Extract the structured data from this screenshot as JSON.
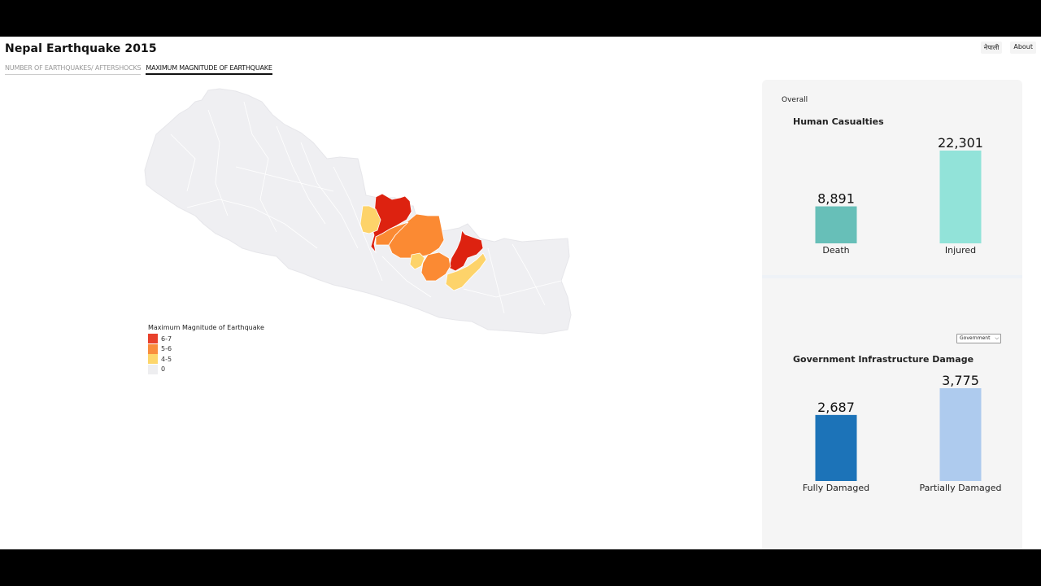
{
  "app": {
    "title": "Nepal Earthquake 2015"
  },
  "top_links": [
    {
      "label": "नेपाली"
    },
    {
      "label": "About"
    }
  ],
  "tabs": [
    {
      "label": "NUMBER OF EARTHQUAKES/ AFTERSHOCKS",
      "active": false
    },
    {
      "label": "MAXIMUM MAGNITUDE OF EARTHQUAKE",
      "active": true
    }
  ],
  "legend": {
    "title": "Maximum Magnitude of Earthquake",
    "items": [
      {
        "label": "6-7",
        "color": "#e8412c"
      },
      {
        "label": "5-6",
        "color": "#f98d3d"
      },
      {
        "label": "4-5",
        "color": "#fdd66b"
      },
      {
        "label": "0",
        "color": "#eeeef0"
      }
    ]
  },
  "map_colors": {
    "base": "#efeff2",
    "border": "#ffffff",
    "mag_6_7": "#dd2210",
    "mag_5_6": "#fb8a33",
    "mag_4_5": "#fdd36a"
  },
  "side_panel": {
    "overall_label": "Overall",
    "casualties": {
      "title": "Human Casualties"
    },
    "infrastructure": {
      "title": "Government Infrastructure Damage",
      "selected_option": "Government"
    }
  },
  "chart_data": [
    {
      "type": "bar",
      "title": "Human Casualties",
      "categories": [
        "Death",
        "Injured"
      ],
      "values": [
        8891,
        22301
      ],
      "value_labels": [
        "8,891",
        "22,301"
      ],
      "colors": [
        "#67bfb8",
        "#92e3d9"
      ]
    },
    {
      "type": "bar",
      "title": "Government Infrastructure Damage",
      "categories": [
        "Fully Damaged",
        "Partially Damaged"
      ],
      "values": [
        2687,
        3775
      ],
      "value_labels": [
        "2,687",
        "3,775"
      ],
      "colors": [
        "#1c73b8",
        "#aecbee"
      ]
    }
  ]
}
